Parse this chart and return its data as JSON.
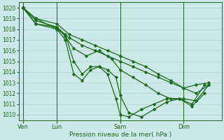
{
  "xlabel": "Pression niveau de la mer( hPa )",
  "bg_color": "#cce8e8",
  "grid_color": "#aacccc",
  "line_color": "#1a6b1a",
  "ylim": [
    1009.5,
    1020.5
  ],
  "day_labels": [
    "Ven",
    "Lun",
    "Sam",
    "Dim"
  ],
  "day_positions": [
    0.5,
    4.5,
    12.0,
    19.5
  ],
  "xlim": [
    0,
    24
  ],
  "series1_x": [
    0.5,
    2.0,
    4.5,
    6.0,
    7.5,
    9.0,
    10.5,
    12.0,
    13.5,
    15.0,
    16.5,
    18.0,
    19.5,
    21.0,
    22.5
  ],
  "series1_y": [
    1020.0,
    1019.0,
    1018.0,
    1017.2,
    1016.5,
    1016.0,
    1015.5,
    1015.0,
    1014.5,
    1014.0,
    1013.5,
    1013.0,
    1012.5,
    1012.8,
    1013.0
  ],
  "series2_x": [
    0.5,
    2.0,
    4.5,
    5.5,
    6.5,
    7.5,
    8.5,
    9.5,
    10.5,
    11.5,
    12.0,
    13.0,
    14.5,
    16.0,
    17.5,
    19.0,
    20.5,
    22.0
  ],
  "series2_y": [
    1020.0,
    1018.8,
    1018.2,
    1017.5,
    1015.0,
    1013.8,
    1014.5,
    1014.5,
    1014.2,
    1013.5,
    1011.8,
    1010.2,
    1009.8,
    1010.5,
    1011.2,
    1011.5,
    1011.0,
    1012.8
  ],
  "series3_x": [
    0.5,
    2.0,
    4.5,
    5.5,
    6.5,
    7.5,
    8.5,
    9.5,
    10.5,
    11.5,
    12.0,
    13.0,
    14.5,
    16.0,
    17.5,
    19.0,
    20.5,
    22.0
  ],
  "series3_y": [
    1020.0,
    1018.5,
    1018.0,
    1017.0,
    1013.8,
    1013.2,
    1014.2,
    1014.5,
    1013.8,
    1011.5,
    1010.0,
    1009.8,
    1010.5,
    1011.0,
    1011.5,
    1011.5,
    1010.8,
    1012.0
  ],
  "series4_x": [
    0.5,
    2.0,
    4.5,
    5.5,
    6.5,
    8.0,
    9.5,
    11.0,
    12.0,
    13.5,
    15.0,
    16.5,
    18.0,
    19.5,
    21.0,
    22.5
  ],
  "series4_y": [
    1020.0,
    1018.5,
    1018.2,
    1017.3,
    1016.2,
    1015.5,
    1016.0,
    1015.2,
    1014.2,
    1013.5,
    1012.8,
    1012.0,
    1011.5,
    1011.5,
    1011.3,
    1012.8
  ],
  "series5_x": [
    0.5,
    2.0,
    4.5,
    6.0,
    7.5,
    9.0,
    10.5,
    12.0,
    13.5,
    15.0,
    16.5,
    18.0,
    19.5,
    21.0,
    22.5
  ],
  "series5_y": [
    1020.0,
    1019.0,
    1018.5,
    1017.5,
    1017.0,
    1016.5,
    1016.0,
    1015.5,
    1015.0,
    1014.5,
    1013.8,
    1013.2,
    1012.5,
    1012.0,
    1012.8
  ]
}
